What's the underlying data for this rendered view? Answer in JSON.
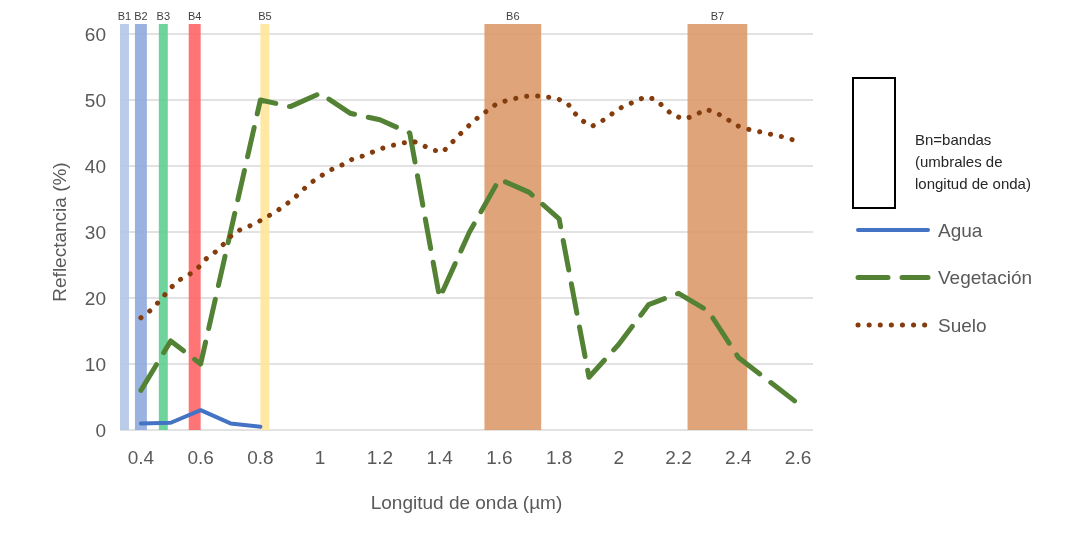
{
  "chart_data": {
    "type": "line",
    "xlabel": "Longitud de onda (µm)",
    "ylabel": "Reflectancia (%)",
    "xlim": [
      0.33,
      2.65
    ],
    "xticks": [
      0.4,
      0.6,
      0.8,
      1,
      1.2,
      1.4,
      1.6,
      1.8,
      2,
      2.2,
      2.4,
      2.6
    ],
    "ylim": [
      0,
      60
    ],
    "yticks": [
      0,
      10,
      20,
      30,
      40,
      50,
      60
    ],
    "grid": "y",
    "legend": "right",
    "annotations": [
      "Bn=bandas (umbrales de longitud de onda)"
    ],
    "bands": [
      {
        "axis": "x",
        "from": 0.33,
        "to": 0.36,
        "label": "B1",
        "color": "#b4c7e7"
      },
      {
        "axis": "x",
        "from": 0.38,
        "to": 0.42,
        "label": "B2",
        "color": "#8faadc"
      },
      {
        "axis": "x",
        "from": 0.46,
        "to": 0.49,
        "label": "B3",
        "color": "#5ecf91"
      },
      {
        "axis": "x",
        "from": 0.56,
        "to": 0.6,
        "label": "B4",
        "color": "#ff6666"
      },
      {
        "axis": "x",
        "from": 0.8,
        "to": 0.83,
        "label": "B5",
        "color": "#ffe699"
      },
      {
        "axis": "x",
        "from": 1.55,
        "to": 1.74,
        "label": "B6",
        "color": "#dc9a6c"
      },
      {
        "axis": "x",
        "from": 2.23,
        "to": 2.43,
        "label": "B7",
        "color": "#dc9a6c"
      }
    ],
    "series": [
      {
        "name": "Agua",
        "color": "#4472c4",
        "line_style": "solid",
        "x": [
          0.4,
          0.5,
          0.6,
          0.7,
          0.8
        ],
        "values": [
          1,
          1.1,
          3,
          1,
          0.5
        ]
      },
      {
        "name": "Vegetación",
        "color": "#548235",
        "line_style": "dashed",
        "x": [
          0.4,
          0.5,
          0.6,
          0.7,
          0.8,
          0.9,
          1,
          1.1,
          1.2,
          1.3,
          1.4,
          1.5,
          1.6,
          1.7,
          1.8,
          1.9,
          2,
          2.1,
          2.2,
          2.3,
          2.4,
          2.5,
          2.6
        ],
        "values": [
          6,
          13.5,
          10,
          30,
          50,
          49,
          51,
          48,
          47,
          45,
          20,
          30,
          38,
          36,
          32,
          8,
          13,
          19,
          20.7,
          18,
          11,
          7.5,
          4
        ]
      },
      {
        "name": "Suelo",
        "color": "#843c0c",
        "line_style": "dotted",
        "x": [
          0.4,
          0.44,
          0.49,
          0.52,
          0.56,
          0.59,
          0.62,
          0.65,
          0.68,
          0.71,
          0.74,
          0.78,
          0.81,
          0.85,
          0.88,
          0.91,
          0.94,
          0.97,
          1.01,
          1.04,
          1.08,
          1.11,
          1.15,
          1.19,
          1.23,
          1.27,
          1.31,
          1.34,
          1.38,
          1.41,
          1.44,
          1.47,
          1.5,
          1.53,
          1.56,
          1.59,
          1.63,
          1.67,
          1.71,
          1.75,
          1.79,
          1.83,
          1.85,
          1.88,
          1.91,
          1.95,
          1.98,
          2.01,
          2.05,
          2.09,
          2.12,
          2.15,
          2.18,
          2.22,
          2.26,
          2.29,
          2.32,
          2.36,
          2.39,
          2.43,
          2.47,
          2.51,
          2.55,
          2.58
        ],
        "values": [
          17,
          18.4,
          21,
          22.5,
          23.5,
          24.5,
          26,
          27,
          28.3,
          29.8,
          30.5,
          31.2,
          32,
          33,
          34,
          35,
          36.3,
          37.5,
          38.7,
          39.5,
          40.3,
          41.1,
          41.6,
          42.4,
          43,
          43.4,
          43.8,
          43.2,
          42.4,
          42.1,
          43.5,
          44.9,
          46.2,
          47.4,
          48.4,
          49.4,
          50,
          50.4,
          50.7,
          50.5,
          50.3,
          49.4,
          48.1,
          46.8,
          46,
          47,
          48,
          48.9,
          49.7,
          50.5,
          50.1,
          49,
          47.7,
          47.1,
          47.8,
          48.6,
          48.2,
          47.2,
          46.2,
          45.6,
          45.2,
          44.8,
          44.4,
          44
        ]
      }
    ]
  }
}
